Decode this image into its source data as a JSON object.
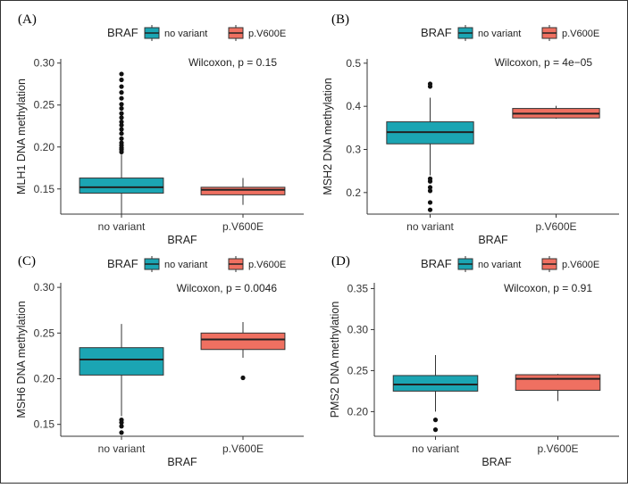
{
  "colors": {
    "no_variant": "#1ba5b3",
    "p_v600e": "#ef7061",
    "border": "#333333",
    "axis": "#333333"
  },
  "chart_data": [
    {
      "panel": "(A)",
      "type": "boxplot",
      "legend_title": "BRAF",
      "legend_entries": [
        "no variant",
        "p.V600E"
      ],
      "xlabel": "BRAF",
      "ylabel": "MLH1 DNA methylation",
      "annotation": "Wilcoxon, p = 0.15",
      "categories": [
        "no variant",
        "p.V600E"
      ],
      "ylim": [
        0.12,
        0.305
      ],
      "yticks": [
        0.15,
        0.2,
        0.25,
        0.3
      ],
      "ytick_labels": [
        "0.15",
        "0.20",
        "0.25",
        "0.30"
      ],
      "series": [
        {
          "name": "no variant",
          "whisker_low": 0.12,
          "q1": 0.145,
          "median": 0.152,
          "q3": 0.163,
          "whisker_high": 0.191,
          "outliers": [
            0.287,
            0.28,
            0.272,
            0.265,
            0.258,
            0.251,
            0.246,
            0.24,
            0.235,
            0.23,
            0.226,
            0.221,
            0.216,
            0.21,
            0.205,
            0.202,
            0.199,
            0.197,
            0.194
          ]
        },
        {
          "name": "p.V600E",
          "whisker_low": 0.131,
          "q1": 0.143,
          "median": 0.149,
          "q3": 0.152,
          "whisker_high": 0.163,
          "outliers": []
        }
      ]
    },
    {
      "panel": "(B)",
      "type": "boxplot",
      "legend_title": "BRAF",
      "legend_entries": [
        "no variant",
        "p.V600E"
      ],
      "xlabel": "BRAF",
      "ylabel": "MSH2 DNA methylation",
      "annotation": "Wilcoxon, p = 4e−05",
      "categories": [
        "no variant",
        "p.V600E"
      ],
      "ylim": [
        0.15,
        0.51
      ],
      "yticks": [
        0.2,
        0.3,
        0.4,
        0.5
      ],
      "ytick_labels": [
        "0.2",
        "0.3",
        "0.4",
        "0.5"
      ],
      "series": [
        {
          "name": "no variant",
          "whisker_low": 0.24,
          "q1": 0.313,
          "median": 0.34,
          "q3": 0.364,
          "whisker_high": 0.42,
          "outliers": [
            0.452,
            0.446,
            0.232,
            0.226,
            0.212,
            0.204,
            0.177,
            0.16
          ]
        },
        {
          "name": "p.V600E",
          "whisker_low": 0.371,
          "q1": 0.373,
          "median": 0.383,
          "q3": 0.395,
          "whisker_high": 0.401,
          "outliers": []
        }
      ]
    },
    {
      "panel": "(C)",
      "type": "boxplot",
      "legend_title": "BRAF",
      "legend_entries": [
        "no variant",
        "p.V600E"
      ],
      "xlabel": "BRAF",
      "ylabel": "MSH6 DNA methylation",
      "annotation": "Wilcoxon, p = 0.0046",
      "categories": [
        "no variant",
        "p.V600E"
      ],
      "ylim": [
        0.137,
        0.305
      ],
      "yticks": [
        0.15,
        0.2,
        0.25,
        0.3
      ],
      "ytick_labels": [
        "0.15",
        "0.20",
        "0.25",
        "0.30"
      ],
      "series": [
        {
          "name": "no variant",
          "whisker_low": 0.159,
          "q1": 0.204,
          "median": 0.221,
          "q3": 0.234,
          "whisker_high": 0.26,
          "outliers": [
            0.155,
            0.152,
            0.148,
            0.141
          ]
        },
        {
          "name": "p.V600E",
          "whisker_low": 0.223,
          "q1": 0.232,
          "median": 0.243,
          "q3": 0.25,
          "whisker_high": 0.262,
          "outliers": [
            0.201
          ]
        }
      ]
    },
    {
      "panel": "(D)",
      "type": "boxplot",
      "legend_title": "BRAF",
      "legend_entries": [
        "no variant",
        "p.V600E"
      ],
      "xlabel": "BRAF",
      "ylabel": "PMS2 DNA methylation",
      "annotation": "Wilcoxon, p = 0.91",
      "categories": [
        "no variant",
        "p.V600E"
      ],
      "ylim": [
        0.17,
        0.357
      ],
      "yticks": [
        0.2,
        0.25,
        0.3,
        0.35
      ],
      "ytick_labels": [
        "0.20",
        "0.25",
        "0.30",
        "0.35"
      ],
      "series": [
        {
          "name": "no variant",
          "whisker_low": 0.2,
          "q1": 0.225,
          "median": 0.233,
          "q3": 0.244,
          "whisker_high": 0.269,
          "outliers": [
            0.19,
            0.178
          ]
        },
        {
          "name": "p.V600E",
          "whisker_low": 0.213,
          "q1": 0.226,
          "median": 0.24,
          "q3": 0.245,
          "whisker_high": 0.246,
          "outliers": []
        }
      ]
    }
  ]
}
